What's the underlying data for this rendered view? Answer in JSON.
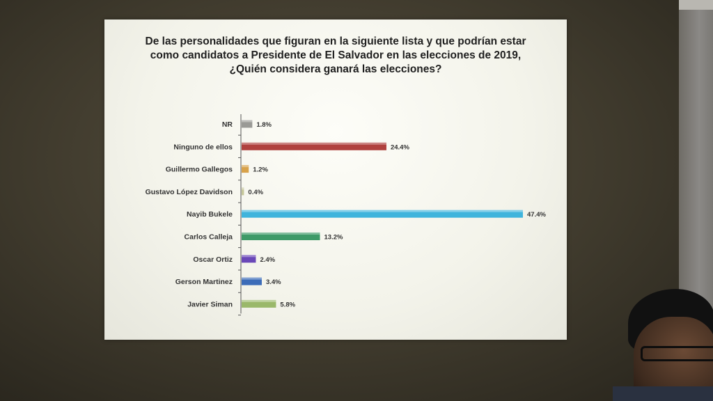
{
  "slide": {
    "title_lines": [
      "De las personalidades que figuran en la siguiente lista y que podrían estar",
      "como candidatos a Presidente de El Salvador en las elecciones de 2019,",
      "¿Quién considera ganará las elecciones?"
    ]
  },
  "chart_data": {
    "type": "bar",
    "orientation": "horizontal",
    "title": "De las personalidades que figuran en la siguiente lista y que podrían estar como candidatos a Presidente de El Salvador en las elecciones de 2019, ¿Quién considera ganará las elecciones?",
    "categories": [
      "NR",
      "Ninguno de ellos",
      "Guillermo Gallegos",
      "Gustavo López Davidson",
      "Nayib Bukele",
      "Carlos Calleja",
      "Oscar Ortiz",
      "Gerson Martinez",
      "Javier Siman"
    ],
    "values": [
      1.8,
      24.4,
      1.2,
      0.4,
      47.4,
      13.2,
      2.4,
      3.4,
      5.8
    ],
    "value_labels": [
      "1.8%",
      "24.4%",
      "1.2%",
      "0.4%",
      "47.4%",
      "13.2%",
      "2.4%",
      "3.4%",
      "5.8%"
    ],
    "colors": [
      "#9a9a96",
      "#b0413e",
      "#d8a24a",
      "#c6c79a",
      "#3fb4dc",
      "#3e9a68",
      "#6a48b8",
      "#3c6cb8",
      "#9ab86a"
    ],
    "unit": "%",
    "xlim": [
      0,
      47.4
    ],
    "grid": false,
    "legend": "none"
  }
}
